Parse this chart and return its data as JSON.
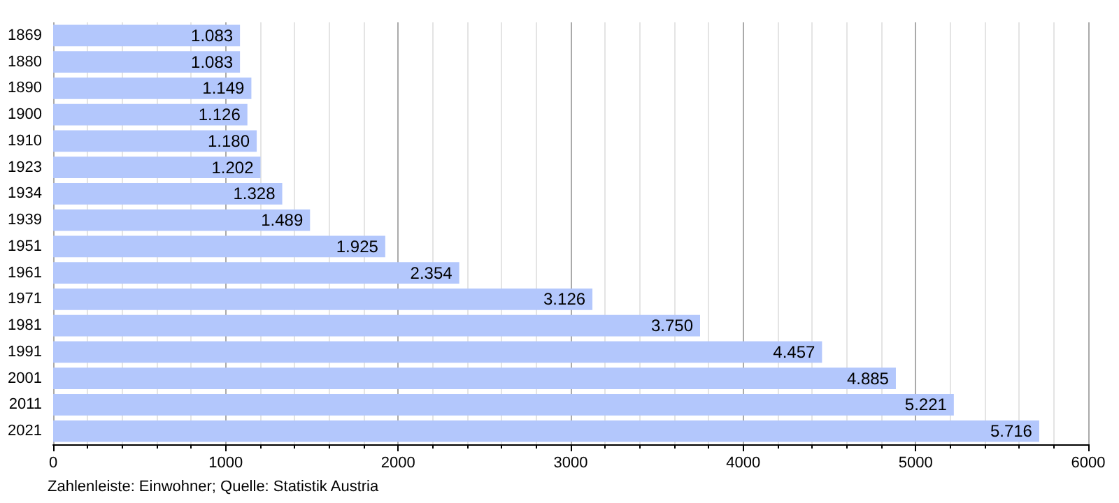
{
  "chart_data": {
    "type": "bar",
    "orientation": "horizontal",
    "categories": [
      "1869",
      "1880",
      "1890",
      "1900",
      "1910",
      "1923",
      "1934",
      "1939",
      "1951",
      "1961",
      "1971",
      "1981",
      "1991",
      "2001",
      "2011",
      "2021"
    ],
    "values": [
      1083,
      1083,
      1149,
      1126,
      1180,
      1202,
      1328,
      1489,
      1925,
      2354,
      3126,
      3750,
      4457,
      4885,
      5221,
      5716
    ],
    "value_labels": [
      "1.083",
      "1.083",
      "1.149",
      "1.126",
      "1.180",
      "1.202",
      "1.328",
      "1.489",
      "1.925",
      "2.354",
      "3.126",
      "3.750",
      "4.457",
      "4.885",
      "5.221",
      "5.716"
    ],
    "color": "#b3c7fc",
    "xlim": [
      0,
      6000
    ],
    "xticks": [
      0,
      1000,
      2000,
      3000,
      4000,
      5000,
      6000
    ],
    "grid": "x",
    "annotations": [
      "Zahlenleiste: Einwohner; Quelle: Statistik Austria"
    ]
  }
}
